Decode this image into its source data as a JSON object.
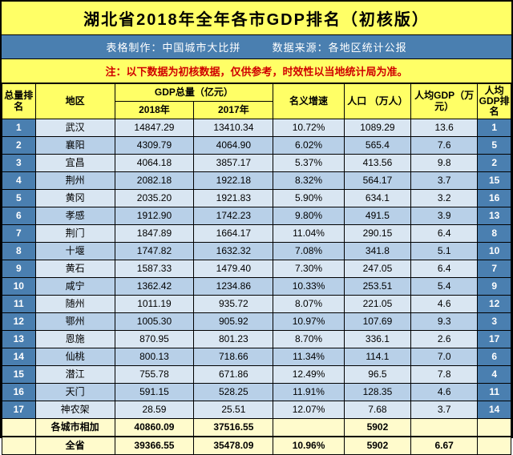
{
  "title": "湖北省2018年全年各市GDP排名（初核版）",
  "info_l": "表格制作：中国城市大比拼",
  "info_r": "数据来源：各地区统计公报",
  "note": "注：以下数据为初核数据，仅供参考，时效性以当地统计局为准。",
  "headers": {
    "rank": "总量排名",
    "region": "地区",
    "gdp_group": "GDP总量（亿元）",
    "gdp2018": "2018年",
    "gdp2017": "2017年",
    "growth": "名义增速",
    "pop": "人口 （万人）",
    "pcgdp": "人均GDP（万元）",
    "pcrank": "人均GDP排名"
  },
  "rows": [
    {
      "rank": "1",
      "region": "武汉",
      "g18": "14847.29",
      "g17": "13410.34",
      "grw": "10.72%",
      "pop": "1089.29",
      "pc": "13.6",
      "pcr": "1"
    },
    {
      "rank": "2",
      "region": "襄阳",
      "g18": "4309.79",
      "g17": "4064.90",
      "grw": "6.02%",
      "pop": "565.4",
      "pc": "7.6",
      "pcr": "5"
    },
    {
      "rank": "3",
      "region": "宜昌",
      "g18": "4064.18",
      "g17": "3857.17",
      "grw": "5.37%",
      "pop": "413.56",
      "pc": "9.8",
      "pcr": "2"
    },
    {
      "rank": "4",
      "region": "荆州",
      "g18": "2082.18",
      "g17": "1922.18",
      "grw": "8.32%",
      "pop": "564.17",
      "pc": "3.7",
      "pcr": "15"
    },
    {
      "rank": "5",
      "region": "黄冈",
      "g18": "2035.20",
      "g17": "1921.83",
      "grw": "5.90%",
      "pop": "634.1",
      "pc": "3.2",
      "pcr": "16"
    },
    {
      "rank": "6",
      "region": "孝感",
      "g18": "1912.90",
      "g17": "1742.23",
      "grw": "9.80%",
      "pop": "491.5",
      "pc": "3.9",
      "pcr": "13"
    },
    {
      "rank": "7",
      "region": "荆门",
      "g18": "1847.89",
      "g17": "1664.17",
      "grw": "11.04%",
      "pop": "290.15",
      "pc": "6.4",
      "pcr": "8"
    },
    {
      "rank": "8",
      "region": "十堰",
      "g18": "1747.82",
      "g17": "1632.32",
      "grw": "7.08%",
      "pop": "341.8",
      "pc": "5.1",
      "pcr": "10"
    },
    {
      "rank": "9",
      "region": "黄石",
      "g18": "1587.33",
      "g17": "1479.40",
      "grw": "7.30%",
      "pop": "247.05",
      "pc": "6.4",
      "pcr": "7"
    },
    {
      "rank": "10",
      "region": "咸宁",
      "g18": "1362.42",
      "g17": "1234.86",
      "grw": "10.33%",
      "pop": "253.51",
      "pc": "5.4",
      "pcr": "9"
    },
    {
      "rank": "11",
      "region": "随州",
      "g18": "1011.19",
      "g17": "935.72",
      "grw": "8.07%",
      "pop": "221.05",
      "pc": "4.6",
      "pcr": "12"
    },
    {
      "rank": "12",
      "region": "鄂州",
      "g18": "1005.30",
      "g17": "905.92",
      "grw": "10.97%",
      "pop": "107.69",
      "pc": "9.3",
      "pcr": "3"
    },
    {
      "rank": "13",
      "region": "恩施",
      "g18": "870.95",
      "g17": "801.23",
      "grw": "8.70%",
      "pop": "336.1",
      "pc": "2.6",
      "pcr": "17"
    },
    {
      "rank": "14",
      "region": "仙桃",
      "g18": "800.13",
      "g17": "718.66",
      "grw": "11.34%",
      "pop": "114.1",
      "pc": "7.0",
      "pcr": "6"
    },
    {
      "rank": "15",
      "region": "潜江",
      "g18": "755.78",
      "g17": "671.86",
      "grw": "12.49%",
      "pop": "96.5",
      "pc": "7.8",
      "pcr": "4"
    },
    {
      "rank": "16",
      "region": "天门",
      "g18": "591.15",
      "g17": "528.25",
      "grw": "11.91%",
      "pop": "128.35",
      "pc": "4.6",
      "pcr": "11"
    },
    {
      "rank": "17",
      "region": "神农架",
      "g18": "28.59",
      "g17": "25.51",
      "grw": "12.07%",
      "pop": "7.68",
      "pc": "3.7",
      "pcr": "14"
    }
  ],
  "sum1": {
    "region": "各城市相加",
    "g18": "40860.09",
    "g17": "37516.55",
    "grw": "",
    "pop": "5902",
    "pc": "",
    "pcr": ""
  },
  "sum2": {
    "region": "全省",
    "g18": "39366.55",
    "g17": "35478.09",
    "grw": "10.96%",
    "pop": "5902",
    "pc": "6.67",
    "pcr": ""
  }
}
